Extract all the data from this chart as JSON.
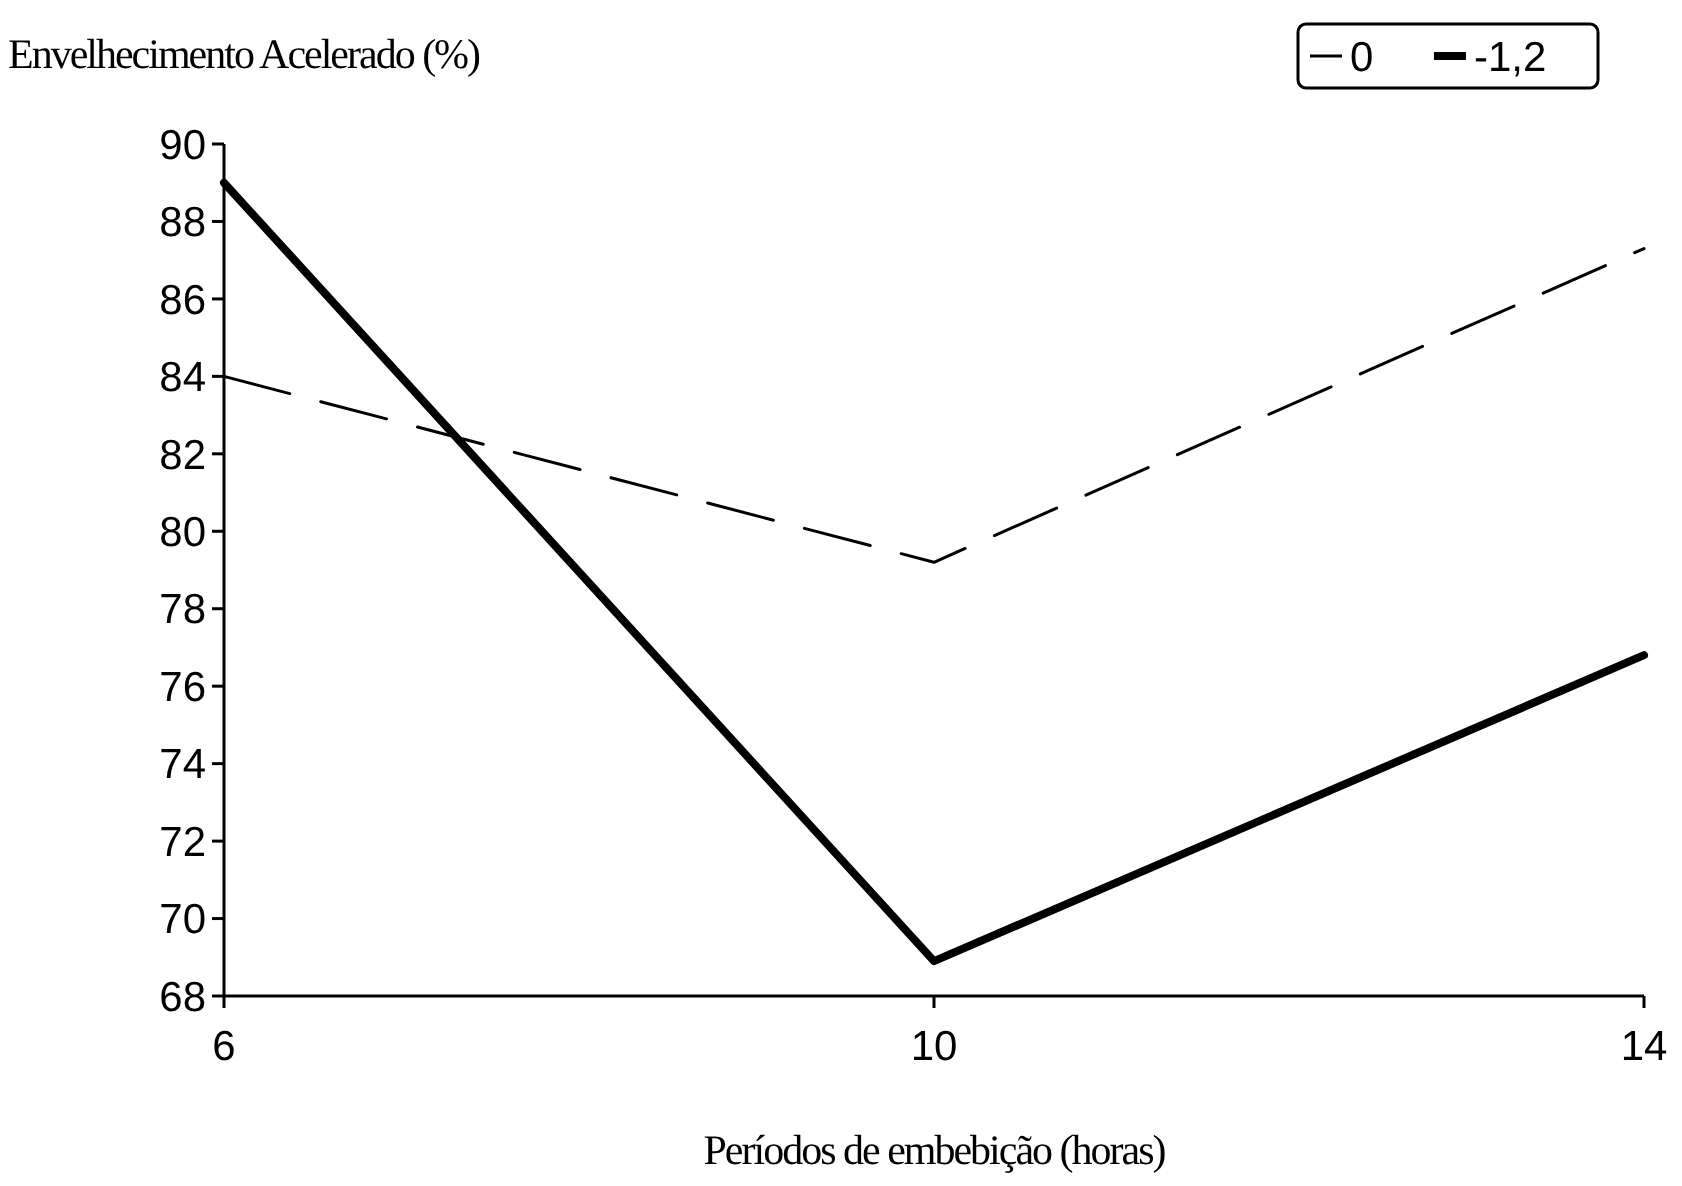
{
  "chart_data": {
    "type": "line",
    "xlabel": "Períodos de embebição (horas)",
    "ylabel": "Envelhecimento Acelerado (%)",
    "x": [
      6,
      10,
      14
    ],
    "xlim": [
      6,
      14
    ],
    "xticks": [
      6,
      10,
      14
    ],
    "ylim": [
      68,
      90
    ],
    "yticks": [
      68,
      70,
      72,
      74,
      76,
      78,
      80,
      82,
      84,
      86,
      88,
      90
    ],
    "legend": "top right",
    "series": [
      {
        "name": "0",
        "color": "#000000",
        "values": [
          84,
          79.2,
          87.3
        ],
        "line_style": "dashed"
      },
      {
        "name": "-1,2",
        "color": "#000000",
        "values": [
          89,
          68.9,
          76.8
        ],
        "line_style": "solid"
      }
    ]
  }
}
